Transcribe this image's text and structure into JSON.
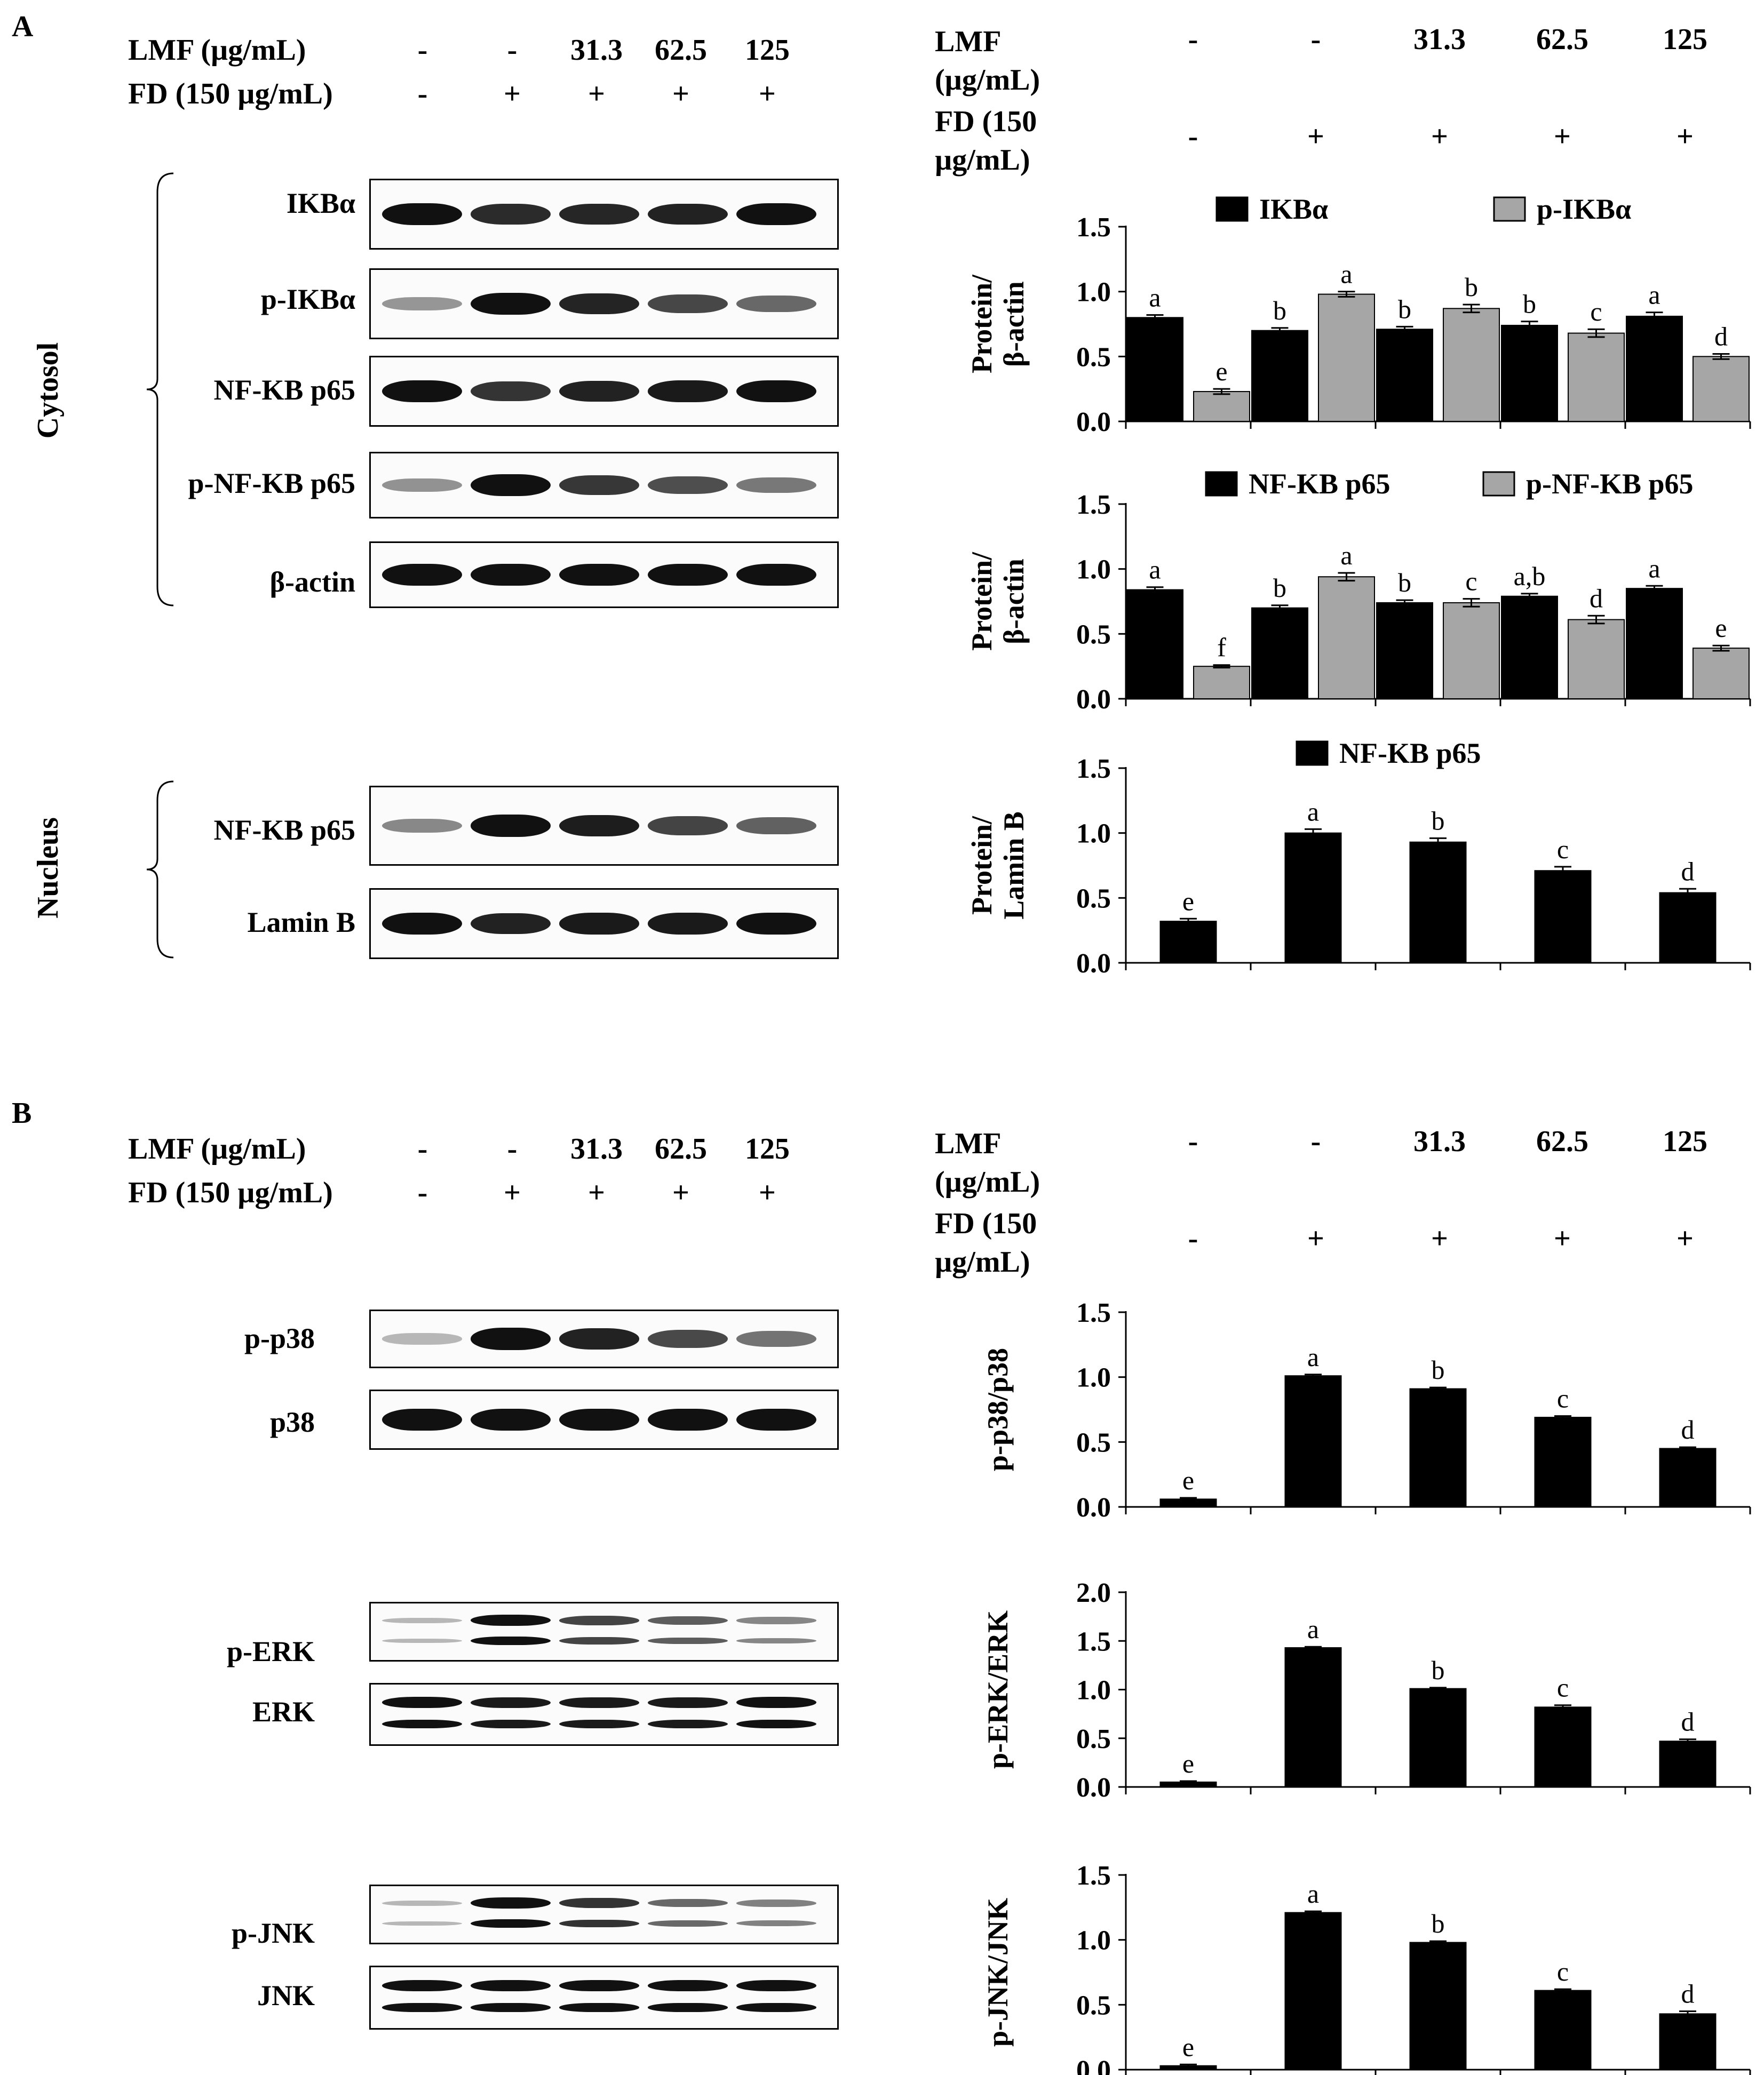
{
  "panels": [
    {
      "letter": "A",
      "treatment_rows": [
        {
          "label": "LMF  (µg/mL)",
          "values": [
            "-",
            "-",
            "31.3",
            "62.5",
            "125"
          ]
        },
        {
          "label": "FD (150 µg/mL)",
          "values": [
            "-",
            "+",
            "+",
            "+",
            "+"
          ]
        }
      ],
      "right_rows": [
        {
          "label": "LMF\n(µg/mL)",
          "values": [
            "-",
            "-",
            "31.3",
            "62.5",
            "125"
          ]
        },
        {
          "label": "FD (150\nµg/mL)",
          "values": [
            "-",
            "+",
            "+",
            "+",
            "+"
          ]
        }
      ],
      "fractions": [
        {
          "name": "Cytosol",
          "blots": [
            "IKBα",
            "p-IKBα",
            "NF-KB p65",
            "p-NF-KB p65",
            "β-actin"
          ]
        },
        {
          "name": "Nucleus",
          "blots": [
            "NF-KB p65",
            "Lamin B"
          ]
        }
      ]
    },
    {
      "letter": "B",
      "treatment_rows": [
        {
          "label": "LMF  (µg/mL)",
          "values": [
            "-",
            "-",
            "31.3",
            "62.5",
            "125"
          ]
        },
        {
          "label": "FD (150 µg/mL)",
          "values": [
            "-",
            "+",
            "+",
            "+",
            "+"
          ]
        }
      ],
      "right_rows": [
        {
          "label": "LMF\n(µg/mL)",
          "values": [
            "-",
            "-",
            "31.3",
            "62.5",
            "125"
          ]
        },
        {
          "label": "FD (150\nµg/mL)",
          "values": [
            "-",
            "+",
            "+",
            "+",
            "+"
          ]
        }
      ],
      "blot_groups": [
        {
          "blots": [
            "p-p38",
            "p38"
          ]
        },
        {
          "blots": [
            "p-ERK",
            "ERK"
          ]
        },
        {
          "blots": [
            "p-JNK",
            "JNK"
          ]
        }
      ]
    }
  ],
  "colors": {
    "black_series": "#000000",
    "gray_series": "#a6a6a6"
  },
  "chart_data": [
    {
      "type": "bar",
      "ylabel": "Protein/\nβ-actin",
      "ylim": [
        0,
        1.5
      ],
      "yticks": [
        "0.0",
        "0.5",
        "1.0",
        "1.5"
      ],
      "series": [
        {
          "name": "IKBα",
          "color": "#000000",
          "values": [
            0.8,
            0.7,
            0.71,
            0.74,
            0.81
          ],
          "errors": [
            0.02,
            0.02,
            0.02,
            0.03,
            0.03
          ],
          "letters": [
            "a",
            "b",
            "b",
            "b",
            "a"
          ]
        },
        {
          "name": "p-IKBα",
          "color": "#a6a6a6",
          "values": [
            0.23,
            0.98,
            0.87,
            0.68,
            0.5
          ],
          "errors": [
            0.02,
            0.02,
            0.03,
            0.03,
            0.02
          ],
          "letters": [
            "e",
            "a",
            "b",
            "c",
            "d"
          ]
        }
      ]
    },
    {
      "type": "bar",
      "ylabel": "Protein/\nβ-actin",
      "ylim": [
        0,
        1.5
      ],
      "yticks": [
        "0.0",
        "0.5",
        "1.0",
        "1.5"
      ],
      "series": [
        {
          "name": "NF-KB p65",
          "color": "#000000",
          "values": [
            0.84,
            0.7,
            0.74,
            0.79,
            0.85
          ],
          "errors": [
            0.02,
            0.02,
            0.02,
            0.02,
            0.02
          ],
          "letters": [
            "a",
            "b",
            "b",
            "a,b",
            "a"
          ]
        },
        {
          "name": "p-NF-KB p65",
          "color": "#a6a6a6",
          "values": [
            0.25,
            0.94,
            0.74,
            0.61,
            0.39
          ],
          "errors": [
            0.01,
            0.03,
            0.03,
            0.03,
            0.02
          ],
          "letters": [
            "f",
            "a",
            "c",
            "d",
            "e"
          ]
        }
      ]
    },
    {
      "type": "bar",
      "ylabel": "Protein/\nLamin B",
      "ylim": [
        0,
        1.5
      ],
      "yticks": [
        "0.0",
        "0.5",
        "1.0",
        "1.5"
      ],
      "series": [
        {
          "name": "NF-KB p65",
          "color": "#000000",
          "values": [
            0.32,
            1.0,
            0.93,
            0.71,
            0.54
          ],
          "errors": [
            0.02,
            0.03,
            0.03,
            0.03,
            0.03
          ],
          "letters": [
            "e",
            "a",
            "b",
            "c",
            "d"
          ]
        }
      ]
    },
    {
      "type": "bar",
      "ylabel": "p-p38/p38",
      "ylim": [
        0,
        1.5
      ],
      "yticks": [
        "0.0",
        "0.5",
        "1.0",
        "1.5"
      ],
      "series": [
        {
          "name": "",
          "color": "#000000",
          "values": [
            0.06,
            1.01,
            0.91,
            0.69,
            0.45
          ],
          "errors": [
            0.01,
            0.01,
            0.01,
            0.01,
            0.01
          ],
          "letters": [
            "e",
            "a",
            "b",
            "c",
            "d"
          ]
        }
      ]
    },
    {
      "type": "bar",
      "ylabel": "p-ERK/ERK",
      "ylim": [
        0,
        2.0
      ],
      "yticks": [
        "0.0",
        "0.5",
        "1.0",
        "1.5",
        "2.0"
      ],
      "series": [
        {
          "name": "",
          "color": "#000000",
          "values": [
            0.05,
            1.43,
            1.01,
            0.82,
            0.47
          ],
          "errors": [
            0.01,
            0.01,
            0.01,
            0.02,
            0.02
          ],
          "letters": [
            "e",
            "a",
            "b",
            "c",
            "d"
          ]
        }
      ]
    },
    {
      "type": "bar",
      "ylabel": "p-JNK/JNK",
      "ylim": [
        0,
        1.5
      ],
      "yticks": [
        "0.0",
        "0.5",
        "1.0",
        "1.5"
      ],
      "series": [
        {
          "name": "",
          "color": "#000000",
          "values": [
            0.03,
            1.21,
            0.98,
            0.61,
            0.43
          ],
          "errors": [
            0.01,
            0.01,
            0.01,
            0.01,
            0.02
          ],
          "letters": [
            "e",
            "a",
            "b",
            "c",
            "d"
          ]
        }
      ]
    }
  ]
}
